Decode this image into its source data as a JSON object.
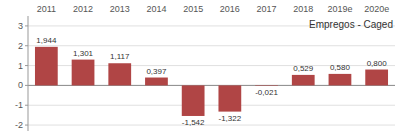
{
  "chart_data": {
    "type": "bar",
    "title": "Empregos - Caged",
    "categories": [
      "2011",
      "2012",
      "2013",
      "2014",
      "2015",
      "2016",
      "2017",
      "2018",
      "2019e",
      "2020e"
    ],
    "values": [
      1.944,
      1.301,
      1.117,
      0.397,
      -1.542,
      -1.322,
      -0.021,
      0.529,
      0.58,
      0.8
    ],
    "value_labels": [
      "1,944",
      "1,301",
      "1,117",
      "0,397",
      "-1,542",
      "-1,322",
      "-0,021",
      "0,529",
      "0,580",
      "0,800"
    ],
    "color": "#b04545",
    "ylim": [
      -2.3,
      3.5
    ],
    "yticks": [
      -2,
      -1,
      0,
      1,
      2,
      3
    ],
    "grid": true,
    "data_labels": true
  }
}
